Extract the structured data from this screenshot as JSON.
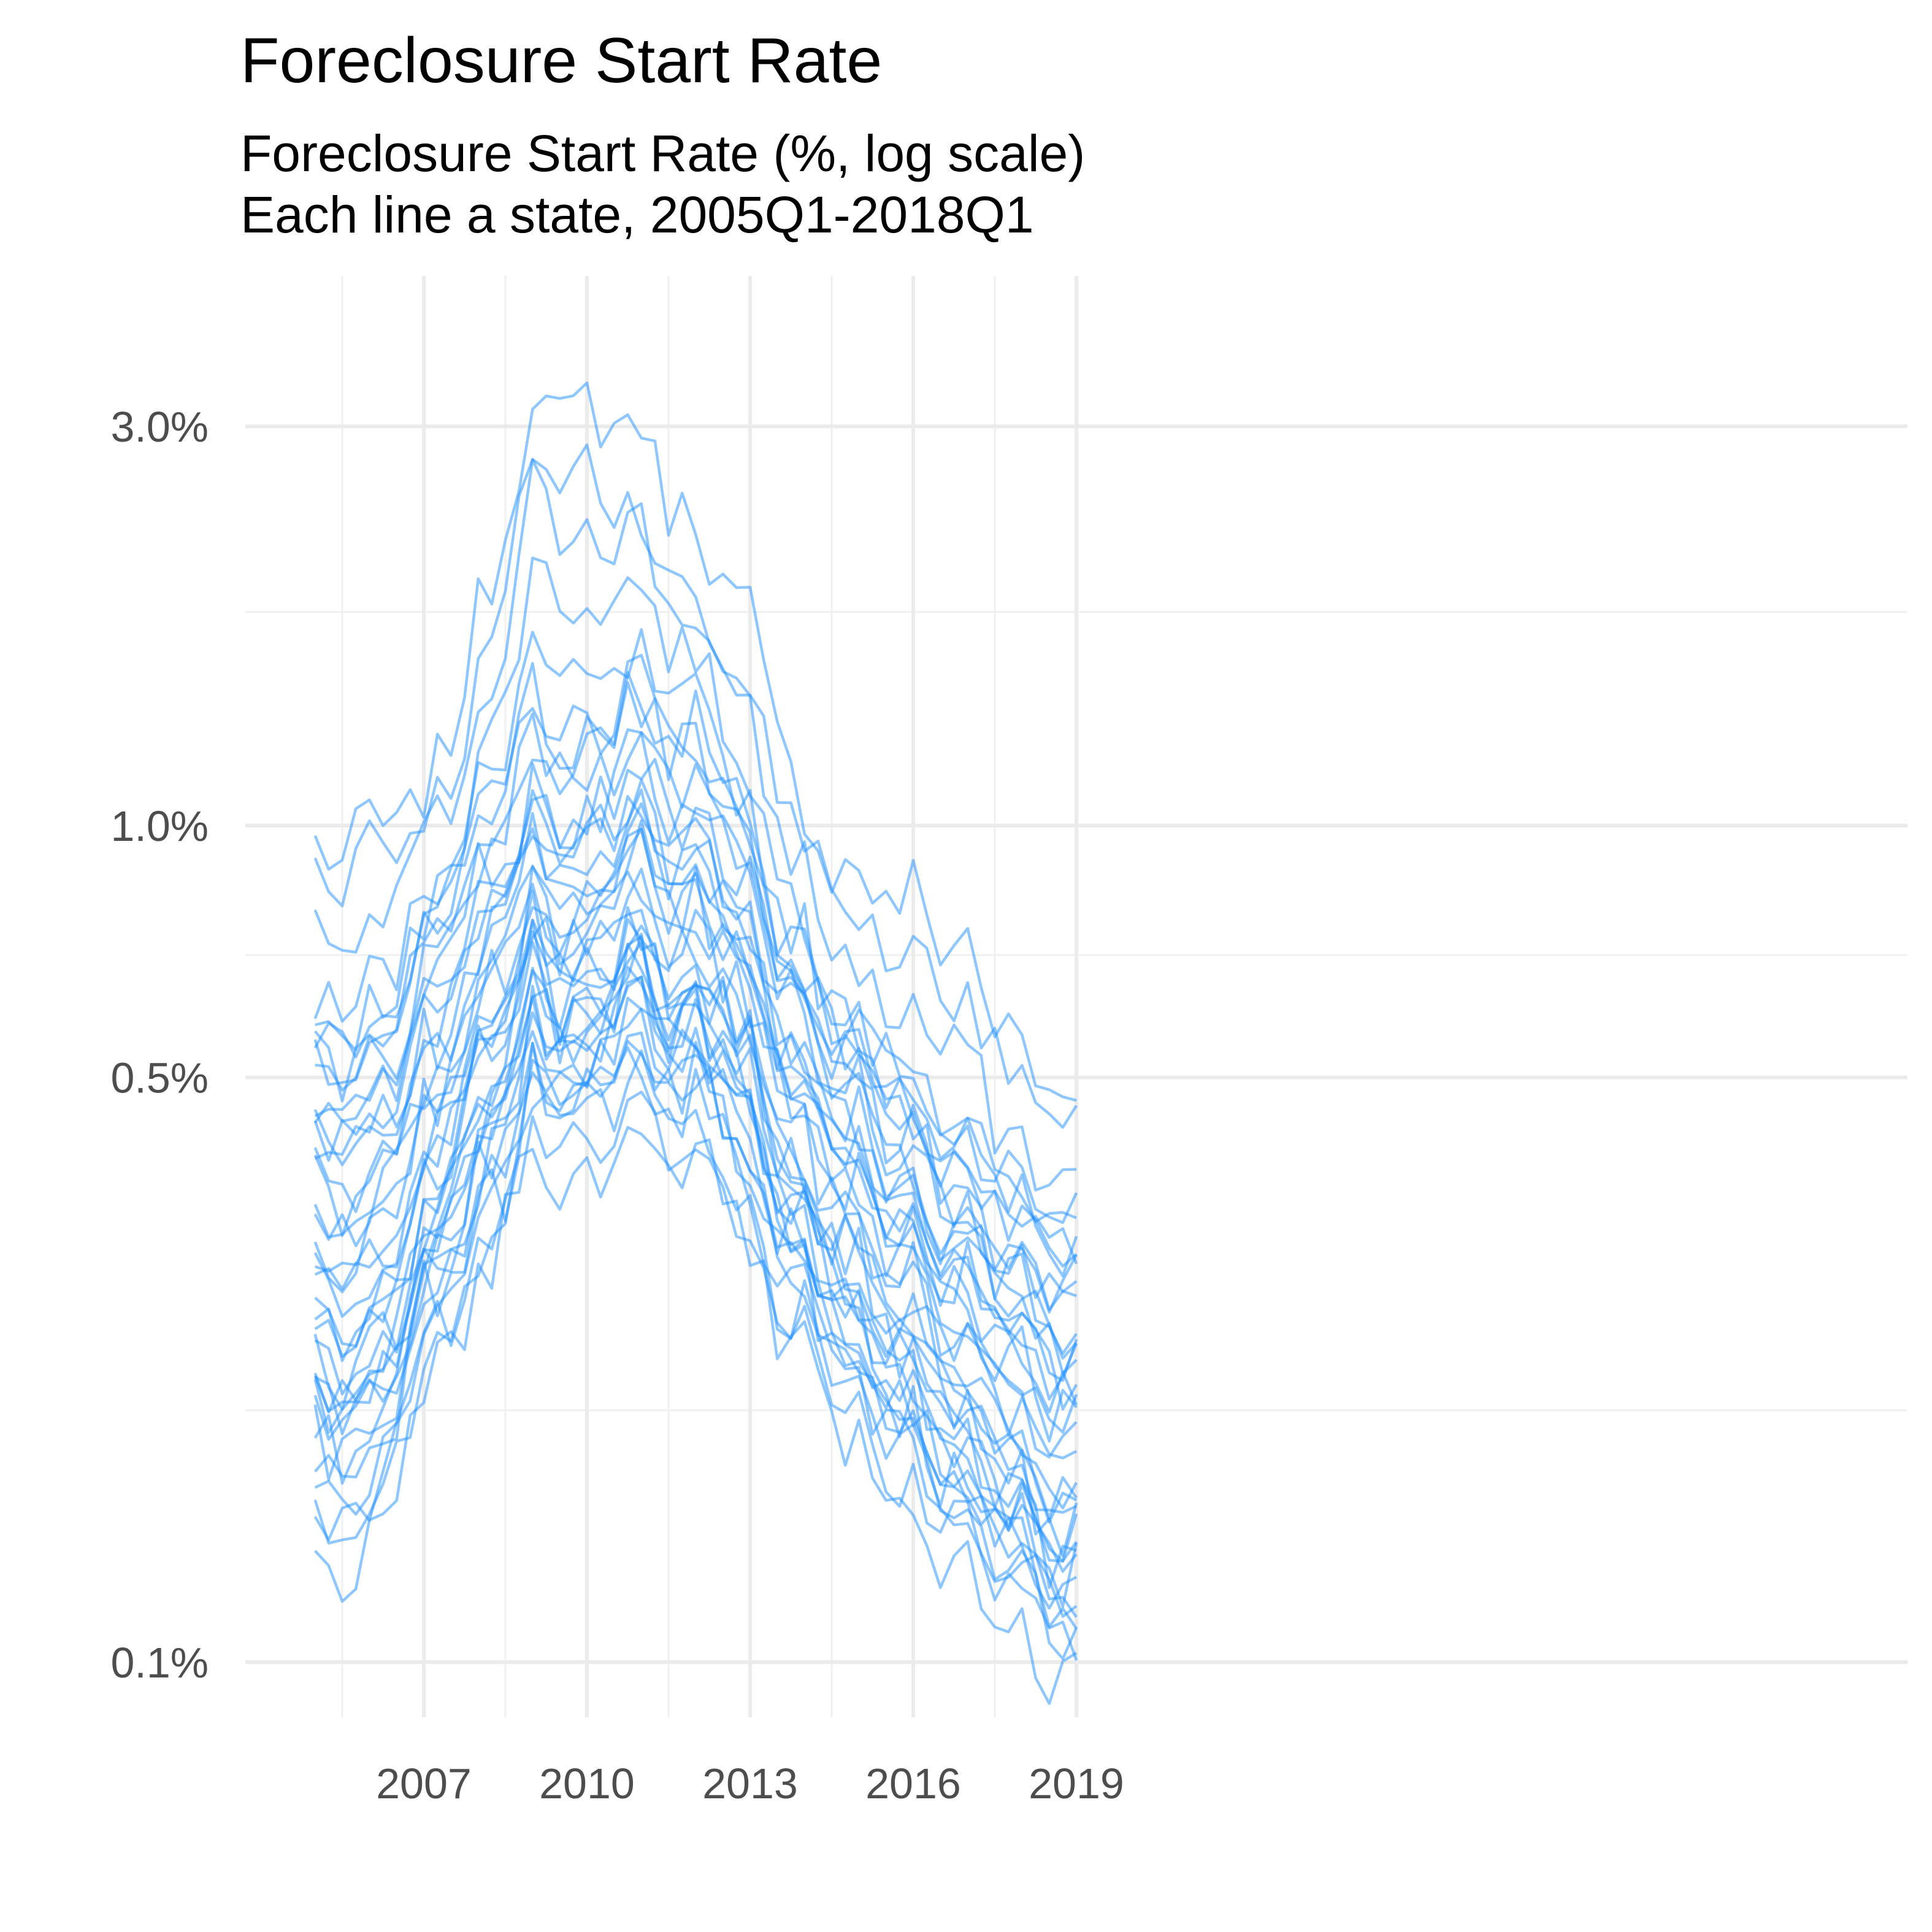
{
  "chart_data": {
    "type": "line",
    "title": "Foreclosure Start Rate",
    "subtitle": [
      "Foreclosure Start Rate (%, log scale)",
      "Each line a state, 2005Q1-2018Q1"
    ],
    "xlabel": "",
    "ylabel": "",
    "log_scale_y": true,
    "xlim": [
      2005.0,
      2019.0
    ],
    "ylim": [
      0.09,
      3.8
    ],
    "x_ticks": [
      2007,
      2010,
      2013,
      2016,
      2019
    ],
    "x_tick_labels": [
      "2007",
      "2010",
      "2013",
      "2016",
      "2019"
    ],
    "y_ticks": [
      0.1,
      0.5,
      1.0,
      3.0
    ],
    "y_tick_labels": [
      "0.1%",
      "0.5%",
      "1.0%",
      "3.0%"
    ],
    "grid": true,
    "legend": "none",
    "line_color": "#1E90FF",
    "x_keys": [
      2005.0,
      2006.0,
      2007.0,
      2008.0,
      2009.0,
      2010.0,
      2010.75,
      2011.5,
      2012.5,
      2013.0,
      2014.0,
      2015.0,
      2016.0,
      2017.0,
      2018.0,
      2019.0
    ],
    "series_keyframes": [
      [
        0.9,
        0.98,
        1.04,
        1.7,
        3.2,
        3.05,
        3.1,
        2.5,
        2.0,
        1.7,
        1.0,
        0.85,
        0.8,
        0.7,
        0.52,
        0.45
      ],
      [
        0.85,
        0.95,
        1.0,
        1.4,
        2.7,
        2.6,
        2.45,
        2.0,
        1.6,
        1.4,
        0.95,
        0.75,
        0.7,
        0.62,
        0.48,
        0.4
      ],
      [
        0.78,
        0.7,
        0.95,
        1.2,
        2.4,
        2.25,
        2.3,
        1.9,
        1.55,
        1.25,
        0.85,
        0.65,
        0.58,
        0.52,
        0.4,
        0.36
      ],
      [
        0.6,
        0.62,
        0.8,
        1.1,
        2.0,
        1.8,
        1.95,
        1.7,
        1.4,
        1.1,
        0.75,
        0.58,
        0.5,
        0.42,
        0.36,
        0.32
      ],
      [
        0.55,
        0.58,
        0.72,
        1.05,
        1.6,
        1.4,
        1.55,
        1.4,
        1.25,
        1.0,
        0.7,
        0.55,
        0.48,
        0.4,
        0.34,
        0.3
      ],
      [
        0.52,
        0.55,
        0.68,
        0.95,
        1.4,
        1.25,
        1.5,
        1.3,
        1.15,
        0.9,
        0.65,
        0.52,
        0.45,
        0.38,
        0.32,
        0.28
      ],
      [
        0.48,
        0.5,
        0.62,
        0.85,
        1.25,
        1.1,
        1.3,
        1.15,
        1.05,
        0.85,
        0.62,
        0.5,
        0.42,
        0.36,
        0.3,
        0.26
      ],
      [
        0.45,
        0.48,
        0.58,
        0.78,
        1.1,
        1.0,
        1.2,
        1.05,
        0.95,
        0.8,
        0.58,
        0.48,
        0.4,
        0.34,
        0.29,
        0.25
      ],
      [
        0.42,
        0.44,
        0.55,
        0.72,
        1.0,
        0.92,
        1.1,
        0.98,
        0.9,
        0.75,
        0.55,
        0.46,
        0.38,
        0.32,
        0.27,
        0.24
      ],
      [
        0.4,
        0.41,
        0.52,
        0.68,
        0.95,
        0.88,
        1.05,
        0.92,
        0.86,
        0.72,
        0.52,
        0.44,
        0.36,
        0.31,
        0.26,
        0.23
      ],
      [
        0.37,
        0.38,
        0.5,
        0.65,
        0.9,
        0.84,
        1.0,
        0.88,
        0.82,
        0.68,
        0.5,
        0.42,
        0.35,
        0.3,
        0.25,
        0.22
      ],
      [
        0.35,
        0.36,
        0.47,
        0.62,
        0.86,
        0.8,
        0.95,
        0.84,
        0.78,
        0.65,
        0.48,
        0.4,
        0.33,
        0.28,
        0.24,
        0.21
      ],
      [
        0.33,
        0.33,
        0.44,
        0.6,
        0.82,
        0.76,
        0.9,
        0.8,
        0.75,
        0.62,
        0.46,
        0.38,
        0.32,
        0.27,
        0.23,
        0.2
      ],
      [
        0.31,
        0.31,
        0.42,
        0.58,
        0.78,
        0.72,
        0.86,
        0.76,
        0.72,
        0.6,
        0.44,
        0.36,
        0.3,
        0.26,
        0.22,
        0.19
      ],
      [
        0.29,
        0.29,
        0.4,
        0.55,
        0.75,
        0.7,
        0.82,
        0.73,
        0.69,
        0.58,
        0.42,
        0.35,
        0.29,
        0.25,
        0.21,
        0.18
      ],
      [
        0.27,
        0.27,
        0.38,
        0.52,
        0.72,
        0.67,
        0.79,
        0.7,
        0.66,
        0.55,
        0.4,
        0.33,
        0.28,
        0.24,
        0.2,
        0.17
      ],
      [
        0.26,
        0.25,
        0.36,
        0.5,
        0.7,
        0.65,
        0.76,
        0.68,
        0.64,
        0.53,
        0.38,
        0.32,
        0.27,
        0.23,
        0.19,
        0.16
      ],
      [
        0.24,
        0.23,
        0.34,
        0.48,
        0.68,
        0.62,
        0.73,
        0.65,
        0.62,
        0.51,
        0.36,
        0.3,
        0.26,
        0.22,
        0.18,
        0.155
      ],
      [
        0.23,
        0.22,
        0.32,
        0.46,
        0.65,
        0.6,
        0.7,
        0.63,
        0.6,
        0.49,
        0.35,
        0.29,
        0.25,
        0.21,
        0.175,
        0.15
      ],
      [
        0.22,
        0.21,
        0.31,
        0.44,
        0.62,
        0.58,
        0.68,
        0.61,
        0.58,
        0.47,
        0.34,
        0.28,
        0.24,
        0.2,
        0.17,
        0.145
      ],
      [
        0.21,
        0.2,
        0.3,
        0.42,
        0.6,
        0.56,
        0.66,
        0.59,
        0.56,
        0.46,
        0.33,
        0.27,
        0.23,
        0.19,
        0.16,
        0.14
      ],
      [
        0.2,
        0.19,
        0.29,
        0.4,
        0.58,
        0.54,
        0.64,
        0.57,
        0.54,
        0.44,
        0.32,
        0.26,
        0.22,
        0.185,
        0.155,
        0.135
      ],
      [
        0.19,
        0.18,
        0.28,
        0.38,
        0.56,
        0.52,
        0.62,
        0.55,
        0.52,
        0.42,
        0.31,
        0.25,
        0.21,
        0.18,
        0.15,
        0.13
      ],
      [
        0.18,
        0.175,
        0.27,
        0.36,
        0.54,
        0.5,
        0.6,
        0.53,
        0.5,
        0.4,
        0.3,
        0.24,
        0.2,
        0.17,
        0.145,
        0.125
      ],
      [
        0.17,
        0.165,
        0.26,
        0.34,
        0.52,
        0.48,
        0.58,
        0.51,
        0.48,
        0.38,
        0.29,
        0.23,
        0.19,
        0.165,
        0.14,
        0.12
      ],
      [
        0.16,
        0.155,
        0.25,
        0.32,
        0.5,
        0.46,
        0.56,
        0.49,
        0.46,
        0.36,
        0.28,
        0.22,
        0.18,
        0.16,
        0.135,
        0.115
      ],
      [
        0.15,
        0.145,
        0.24,
        0.3,
        0.48,
        0.44,
        0.54,
        0.47,
        0.44,
        0.34,
        0.27,
        0.21,
        0.175,
        0.15,
        0.13,
        0.11
      ],
      [
        0.14,
        0.14,
        0.22,
        0.28,
        0.46,
        0.42,
        0.52,
        0.45,
        0.42,
        0.32,
        0.25,
        0.2,
        0.17,
        0.145,
        0.125,
        0.105
      ],
      [
        0.135,
        0.13,
        0.21,
        0.27,
        0.44,
        0.4,
        0.5,
        0.43,
        0.4,
        0.3,
        0.24,
        0.19,
        0.16,
        0.14,
        0.12,
        0.1
      ],
      [
        0.5,
        0.55,
        0.7,
        0.9,
        1.2,
        1.15,
        1.4,
        1.25,
        1.1,
        0.88,
        0.6,
        0.5,
        0.44,
        0.38,
        0.33,
        0.3
      ],
      [
        0.44,
        0.47,
        0.6,
        0.82,
        1.05,
        0.98,
        1.22,
        1.08,
        1.0,
        0.82,
        0.56,
        0.47,
        0.4,
        0.35,
        0.3,
        0.27
      ],
      [
        0.3,
        0.3,
        0.38,
        0.52,
        0.68,
        0.62,
        0.75,
        0.65,
        0.62,
        0.52,
        0.37,
        0.3,
        0.24,
        0.2,
        0.17,
        0.14
      ],
      [
        0.26,
        0.24,
        0.33,
        0.45,
        0.6,
        0.56,
        0.68,
        0.6,
        0.56,
        0.45,
        0.32,
        0.26,
        0.21,
        0.18,
        0.15,
        0.125
      ],
      [
        0.38,
        0.42,
        0.55,
        0.75,
        0.98,
        0.92,
        1.1,
        0.95,
        0.88,
        0.72,
        0.5,
        0.42,
        0.36,
        0.31,
        0.27,
        0.24
      ],
      [
        0.32,
        0.34,
        0.45,
        0.62,
        0.82,
        0.78,
        0.92,
        0.82,
        0.78,
        0.62,
        0.45,
        0.38,
        0.32,
        0.28,
        0.24,
        0.21
      ],
      [
        0.21,
        0.2,
        0.28,
        0.38,
        0.5,
        0.46,
        0.56,
        0.5,
        0.46,
        0.38,
        0.28,
        0.22,
        0.18,
        0.155,
        0.13,
        0.11
      ],
      [
        0.23,
        0.22,
        0.3,
        0.42,
        0.55,
        0.5,
        0.62,
        0.56,
        0.52,
        0.42,
        0.3,
        0.24,
        0.19,
        0.16,
        0.14,
        0.115
      ],
      [
        0.56,
        0.6,
        0.75,
        1.0,
        1.35,
        1.2,
        1.45,
        1.3,
        1.2,
        0.95,
        0.66,
        0.55,
        0.48,
        0.42,
        0.36,
        0.33
      ],
      [
        0.19,
        0.19,
        0.26,
        0.35,
        0.4,
        0.36,
        0.45,
        0.4,
        0.38,
        0.3,
        0.22,
        0.17,
        0.14,
        0.12,
        0.105,
        0.095
      ]
    ]
  }
}
